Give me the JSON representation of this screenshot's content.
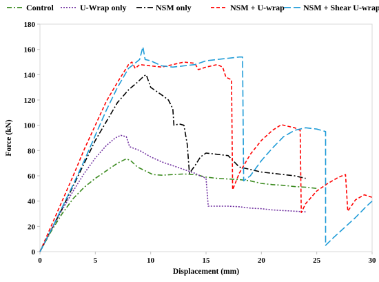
{
  "chart_data": {
    "type": "line",
    "title": "",
    "xlabel": "Displacement (mm)",
    "ylabel": "Force (kN)",
    "xlim": [
      0,
      30
    ],
    "ylim": [
      0,
      180
    ],
    "xticks": [
      "0",
      "5",
      "10",
      "15",
      "20",
      "25",
      "30"
    ],
    "yticks": [
      "0",
      "20",
      "40",
      "60",
      "80",
      "100",
      "120",
      "140",
      "160",
      "180"
    ],
    "grid": false,
    "legend_position": "top",
    "series": [
      {
        "name": "Control",
        "color": "#3a8a1e",
        "dash": "7 3 2 3",
        "points": [
          [
            0,
            0
          ],
          [
            1,
            16
          ],
          [
            2,
            30
          ],
          [
            3,
            42
          ],
          [
            4,
            51
          ],
          [
            5,
            58
          ],
          [
            6,
            64
          ],
          [
            7,
            70
          ],
          [
            7.8,
            73.5
          ],
          [
            8.2,
            72
          ],
          [
            8.8,
            67
          ],
          [
            9.5,
            64
          ],
          [
            10.2,
            61
          ],
          [
            11,
            60.5
          ],
          [
            12,
            61
          ],
          [
            13,
            61.5
          ],
          [
            14,
            61
          ],
          [
            15,
            59
          ],
          [
            16,
            58
          ],
          [
            17,
            57.5
          ],
          [
            18,
            57
          ],
          [
            19,
            56
          ],
          [
            20,
            54
          ],
          [
            21,
            53
          ],
          [
            22,
            52.5
          ],
          [
            23,
            51.5
          ],
          [
            24,
            51
          ],
          [
            25,
            50
          ]
        ]
      },
      {
        "name": "U-Wrap only",
        "color": "#7030a0",
        "dash": "2 2",
        "points": [
          [
            0,
            0
          ],
          [
            1,
            17
          ],
          [
            2,
            33
          ],
          [
            3,
            48
          ],
          [
            4,
            62
          ],
          [
            5,
            74
          ],
          [
            6,
            84
          ],
          [
            6.8,
            90
          ],
          [
            7.3,
            92
          ],
          [
            7.8,
            91
          ],
          [
            8.1,
            83
          ],
          [
            9,
            80
          ],
          [
            10,
            75
          ],
          [
            11,
            71
          ],
          [
            12,
            68
          ],
          [
            13,
            65
          ],
          [
            14,
            62
          ],
          [
            15,
            58
          ],
          [
            15.2,
            36
          ],
          [
            16,
            36
          ],
          [
            17,
            36
          ],
          [
            18,
            35.5
          ],
          [
            19,
            34.5
          ],
          [
            20,
            34
          ],
          [
            21,
            33
          ],
          [
            22,
            32.5
          ],
          [
            23,
            32
          ],
          [
            24,
            31.5
          ]
        ]
      },
      {
        "name": "NSM only",
        "color": "#000000",
        "dash": "8 3 2 3",
        "points": [
          [
            0,
            0
          ],
          [
            1,
            17
          ],
          [
            2,
            34
          ],
          [
            3,
            52
          ],
          [
            4,
            70
          ],
          [
            5,
            88
          ],
          [
            6,
            103
          ],
          [
            7,
            118
          ],
          [
            8,
            128
          ],
          [
            8.8,
            134
          ],
          [
            9.4,
            139
          ],
          [
            9.6,
            140
          ],
          [
            10,
            130
          ],
          [
            11,
            124
          ],
          [
            11.6,
            120
          ],
          [
            12,
            113
          ],
          [
            12.1,
            100
          ],
          [
            12.6,
            101
          ],
          [
            13,
            100
          ],
          [
            13.3,
            85
          ],
          [
            13.5,
            62
          ],
          [
            14,
            68
          ],
          [
            14.5,
            75
          ],
          [
            15,
            78
          ],
          [
            16,
            77
          ],
          [
            17,
            76
          ],
          [
            18,
            67
          ],
          [
            19,
            65
          ],
          [
            20,
            63
          ],
          [
            21,
            62
          ],
          [
            22,
            61
          ],
          [
            23,
            60
          ],
          [
            24,
            58
          ]
        ]
      },
      {
        "name": "NSM + U-wrap",
        "color": "#ff0000",
        "dash": "5 3",
        "points": [
          [
            0,
            0
          ],
          [
            1,
            20
          ],
          [
            2,
            40
          ],
          [
            3,
            60
          ],
          [
            4,
            81
          ],
          [
            5,
            100
          ],
          [
            6,
            119
          ],
          [
            7,
            134
          ],
          [
            8,
            148
          ],
          [
            8.3,
            150
          ],
          [
            8.6,
            145
          ],
          [
            9,
            148
          ],
          [
            10,
            147
          ],
          [
            11,
            146
          ],
          [
            12,
            148
          ],
          [
            13,
            150
          ],
          [
            14,
            149
          ],
          [
            14.3,
            144
          ],
          [
            15,
            146
          ],
          [
            16,
            148
          ],
          [
            16.5,
            146
          ],
          [
            16.8,
            138
          ],
          [
            17.3,
            136
          ],
          [
            17.4,
            49
          ],
          [
            18,
            62
          ],
          [
            19,
            77
          ],
          [
            20,
            88
          ],
          [
            21,
            96
          ],
          [
            21.8,
            100.5
          ],
          [
            22.5,
            99
          ],
          [
            23,
            98
          ],
          [
            23.5,
            96
          ],
          [
            23.6,
            31
          ],
          [
            24,
            38
          ],
          [
            25,
            48
          ],
          [
            26,
            54
          ],
          [
            27,
            59
          ],
          [
            27.6,
            61
          ],
          [
            27.8,
            32
          ],
          [
            28.5,
            41
          ],
          [
            29.3,
            45
          ],
          [
            30,
            43
          ]
        ]
      },
      {
        "name": "NSM + Shear U-wrap",
        "color": "#1e9bd7",
        "dash": "10 4",
        "points": [
          [
            0,
            0
          ],
          [
            1,
            17
          ],
          [
            2,
            35
          ],
          [
            3,
            53
          ],
          [
            4,
            72
          ],
          [
            5,
            92
          ],
          [
            6,
            112
          ],
          [
            7,
            130
          ],
          [
            8,
            145
          ],
          [
            9,
            152
          ],
          [
            9.3,
            162
          ],
          [
            9.5,
            152
          ],
          [
            10,
            151
          ],
          [
            11,
            147
          ],
          [
            12,
            146
          ],
          [
            13,
            147
          ],
          [
            14,
            148
          ],
          [
            15,
            151
          ],
          [
            16,
            152
          ],
          [
            17,
            153
          ],
          [
            18,
            154
          ],
          [
            18.3,
            154
          ],
          [
            18.4,
            56
          ],
          [
            19,
            60
          ],
          [
            20,
            72
          ],
          [
            21,
            82
          ],
          [
            22,
            91
          ],
          [
            23,
            96
          ],
          [
            24,
            98
          ],
          [
            25,
            97
          ],
          [
            25.8,
            95
          ],
          [
            25.8,
            5
          ],
          [
            26.5,
            11
          ],
          [
            27.5,
            19
          ],
          [
            28.5,
            27
          ],
          [
            29.5,
            36
          ],
          [
            30,
            40
          ]
        ]
      }
    ]
  }
}
